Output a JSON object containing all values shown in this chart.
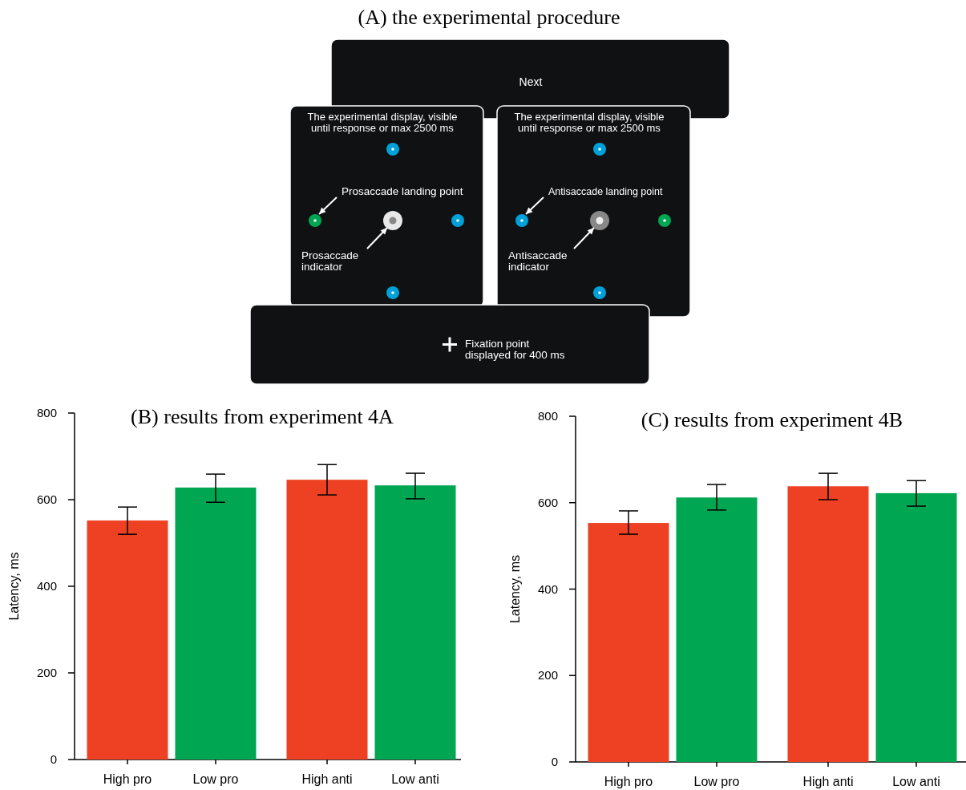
{
  "chart_data": [
    {
      "type": "other",
      "title": "(A)  the experimental procedure",
      "annotations": [
        "Next",
        "The experimental display, visible\nuntil response or max 2500 ms",
        "Prosaccade landing point",
        "Prosaccade\nindicator",
        "The experimental display, visible\nuntil response or max 2500 ms",
        "Antisaccade landing point",
        "Antisaccade\nindicator",
        "Fixation point\ndisplayed for 400 ms"
      ]
    },
    {
      "type": "bar",
      "title": "(B)  results from experiment 4A",
      "ylabel": "Latency, ms",
      "categories": [
        "High pro",
        "Low pro",
        "High anti",
        "Low anti"
      ],
      "colors": [
        "#ee4123",
        "#00a651",
        "#ee4123",
        "#00a651"
      ],
      "values": [
        552,
        628,
        646,
        633
      ],
      "errors": [
        [
          520,
          583
        ],
        [
          594,
          659
        ],
        [
          611,
          681
        ],
        [
          602,
          661
        ]
      ],
      "ylim": [
        0,
        800
      ],
      "yticks": [
        0,
        200,
        400,
        600,
        800
      ]
    },
    {
      "type": "bar",
      "title": "(C)  results from experiment 4B",
      "ylabel": "Latency, ms",
      "categories": [
        "High pro",
        "Low pro",
        "High anti",
        "Low anti"
      ],
      "colors": [
        "#ee4123",
        "#00a651",
        "#ee4123",
        "#00a651"
      ],
      "values": [
        553,
        612,
        638,
        622
      ],
      "errors": [
        [
          527,
          581
        ],
        [
          583,
          642
        ],
        [
          607,
          668
        ],
        [
          592,
          651
        ]
      ],
      "ylim": [
        0,
        800
      ],
      "yticks": [
        0,
        200,
        400,
        600,
        800
      ]
    }
  ]
}
